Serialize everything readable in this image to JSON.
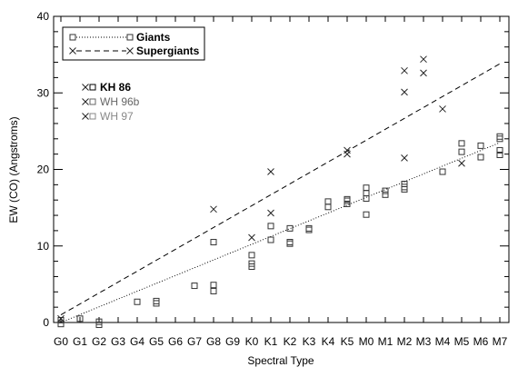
{
  "chart_data": {
    "type": "scatter",
    "xlabel": "Spectral Type",
    "ylabel": "EW (CO) (Angstroms)",
    "categories": [
      "G0",
      "G1",
      "G2",
      "G3",
      "G4",
      "G5",
      "G6",
      "G7",
      "G8",
      "G9",
      "K0",
      "K1",
      "K2",
      "K3",
      "K4",
      "K5",
      "M0",
      "M1",
      "M2",
      "M3",
      "M4",
      "M5",
      "M6",
      "M7"
    ],
    "ylim": [
      0,
      40
    ],
    "yticks": [
      "0",
      "10",
      "20",
      "30",
      "40"
    ],
    "legend": {
      "placement": "top-left",
      "items": [
        {
          "label": "Giants",
          "marker": "square",
          "line": "dotted"
        },
        {
          "label": "Supergiants",
          "marker": "cross",
          "line": "dashed"
        }
      ]
    },
    "sources": [
      {
        "label": "KH 86",
        "color": "#000000"
      },
      {
        "label": "WH 96b",
        "color": "#666666"
      },
      {
        "label": "WH 97",
        "color": "#888888"
      }
    ],
    "series": [
      {
        "name": "Giants",
        "marker": "square",
        "points": [
          [
            "G0",
            -0.2
          ],
          [
            "G0",
            0.3
          ],
          [
            "G1",
            0.5
          ],
          [
            "G2",
            0.1
          ],
          [
            "G2",
            -0.3
          ],
          [
            "G4",
            2.7
          ],
          [
            "G5",
            2.5
          ],
          [
            "G5",
            2.8
          ],
          [
            "G7",
            4.8
          ],
          [
            "G8",
            4.9
          ],
          [
            "G8",
            10.5
          ],
          [
            "G8",
            4.1
          ],
          [
            "K0",
            7.3
          ],
          [
            "K0",
            7.7
          ],
          [
            "K0",
            8.8
          ],
          [
            "K1",
            10.8
          ],
          [
            "K1",
            12.6
          ],
          [
            "K2",
            10.3
          ],
          [
            "K2",
            10.5
          ],
          [
            "K3",
            12.1
          ],
          [
            "K3",
            12.3
          ],
          [
            "K2",
            12.3
          ],
          [
            "K4",
            15.1
          ],
          [
            "K5",
            15.9
          ],
          [
            "K5",
            16.1
          ],
          [
            "K4",
            15.8
          ],
          [
            "K5",
            15.5
          ],
          [
            "M0",
            16.2
          ],
          [
            "M0",
            16.9
          ],
          [
            "M0",
            17.6
          ],
          [
            "M0",
            14.1
          ],
          [
            "M1",
            16.7
          ],
          [
            "M1",
            17.2
          ],
          [
            "M2",
            17.4
          ],
          [
            "M2",
            18.1
          ],
          [
            "M2",
            17.7
          ],
          [
            "M4",
            19.7
          ],
          [
            "M5",
            22.3
          ],
          [
            "M5",
            23.4
          ],
          [
            "M6",
            21.6
          ],
          [
            "M6",
            23.1
          ],
          [
            "M7",
            21.9
          ],
          [
            "M7",
            22.5
          ],
          [
            "M7",
            24.0
          ],
          [
            "M7",
            24.3
          ]
        ]
      },
      {
        "name": "Supergiants",
        "marker": "cross",
        "points": [
          [
            "G0",
            0.5
          ],
          [
            "G8",
            14.8
          ],
          [
            "K0",
            11.1
          ],
          [
            "K1",
            14.3
          ],
          [
            "K1",
            19.7
          ],
          [
            "K5",
            22.0
          ],
          [
            "K5",
            22.5
          ],
          [
            "M2",
            21.5
          ],
          [
            "M2",
            30.1
          ],
          [
            "M2",
            32.9
          ],
          [
            "M3",
            32.6
          ],
          [
            "M3",
            34.4
          ],
          [
            "M4",
            27.9
          ],
          [
            "M5",
            20.8
          ]
        ]
      }
    ],
    "fits": [
      {
        "series": "Giants",
        "style": "dotted",
        "from": [
          "G0",
          0.0
        ],
        "to": [
          "M7",
          23.5
        ]
      },
      {
        "series": "Supergiants",
        "style": "dashed",
        "from": [
          "G0",
          1.0
        ],
        "to": [
          "M7",
          33.8
        ]
      }
    ]
  }
}
